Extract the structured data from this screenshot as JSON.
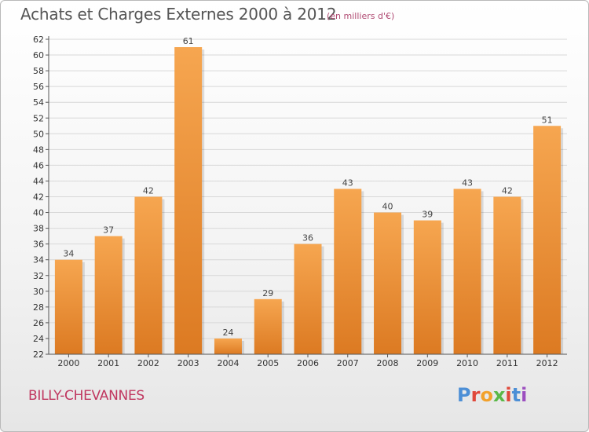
{
  "header": {
    "title": "Achats et Charges Externes 2000 à 2012",
    "subtitle": "(en milliers d'€)"
  },
  "footer": {
    "commune": "BILLY-CHEVANNES",
    "brand": "Proxiti"
  },
  "colors": {
    "bar_light": "#f6a650",
    "bar_dark": "#dc7a22",
    "grid": "#d8d8d8",
    "axis": "#555555"
  },
  "chart_data": {
    "type": "bar",
    "title": "Achats et Charges Externes 2000 à 2012",
    "subtitle": "(en milliers d'€)",
    "xlabel": "",
    "ylabel": "",
    "categories": [
      "2000",
      "2001",
      "2002",
      "2003",
      "2004",
      "2005",
      "2006",
      "2007",
      "2008",
      "2009",
      "2010",
      "2011",
      "2012"
    ],
    "values": [
      34,
      37,
      42,
      61,
      24,
      29,
      36,
      43,
      40,
      39,
      43,
      42,
      51
    ],
    "ylim": [
      22,
      62
    ],
    "ytick_step": 2,
    "grid": true,
    "legend": "none"
  }
}
